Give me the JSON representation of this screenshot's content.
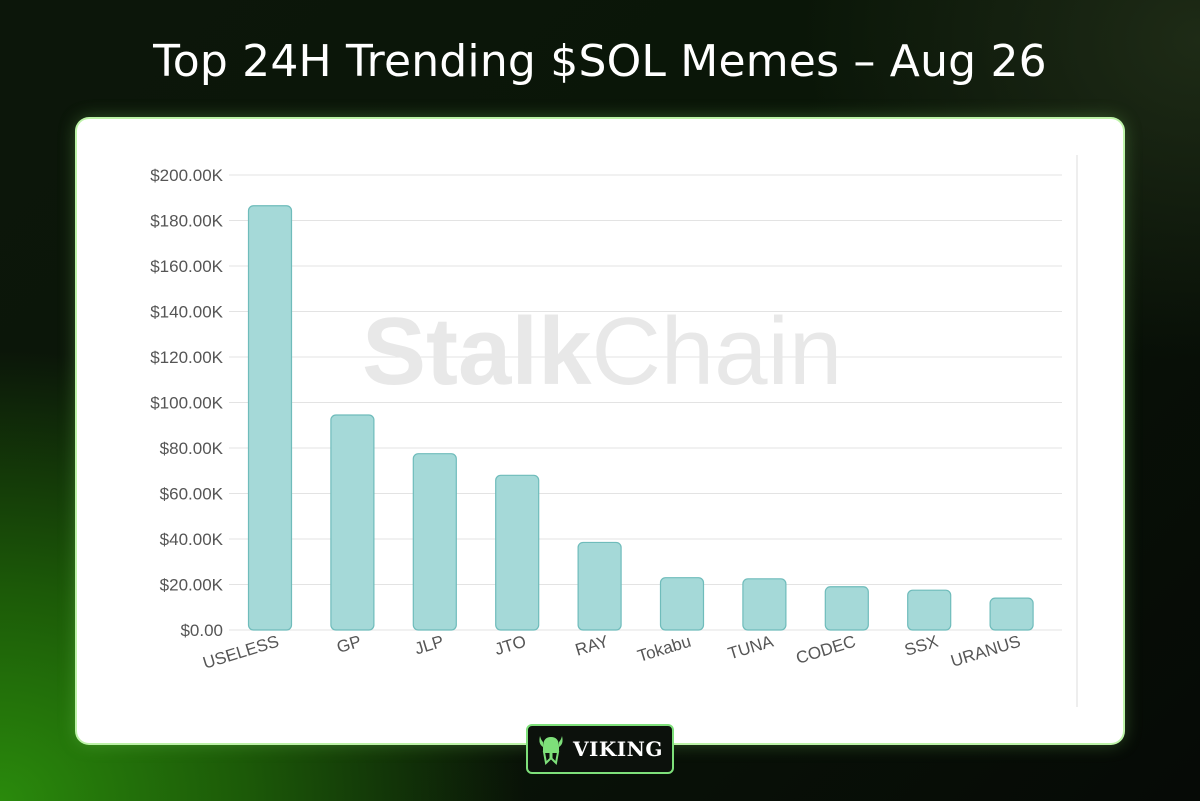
{
  "header": {
    "title": "Top 24H Trending $SOL Memes – Aug 26"
  },
  "watermark": {
    "bold_part": "Stalk",
    "light_part": "Chain"
  },
  "brand": {
    "name": "VIKING",
    "icon": "viking-helmet-icon",
    "accent": "#7ee07a"
  },
  "chart_data": {
    "type": "bar",
    "title": "",
    "xlabel": "",
    "ylabel": "",
    "categories": [
      "USELESS",
      "GP",
      "JLP",
      "JTO",
      "RAY",
      "Tokabu",
      "TUNA",
      "CODEC",
      "SSX",
      "URANUS"
    ],
    "values": [
      186500,
      94500,
      77500,
      68000,
      38500,
      23000,
      22500,
      19000,
      17500,
      14000
    ],
    "ylim": [
      0,
      200000
    ],
    "yticks": [
      0,
      20000,
      40000,
      60000,
      80000,
      100000,
      120000,
      140000,
      160000,
      180000,
      200000
    ],
    "ytick_labels": [
      "$0.00",
      "$20.00K",
      "$40.00K",
      "$60.00K",
      "$80.00K",
      "$100.00K",
      "$120.00K",
      "$140.00K",
      "$160.00K",
      "$180.00K",
      "$200.00K"
    ],
    "grid": true,
    "bar_color": "#a5d9d8",
    "bar_edge_color": "#6fbcbb"
  }
}
